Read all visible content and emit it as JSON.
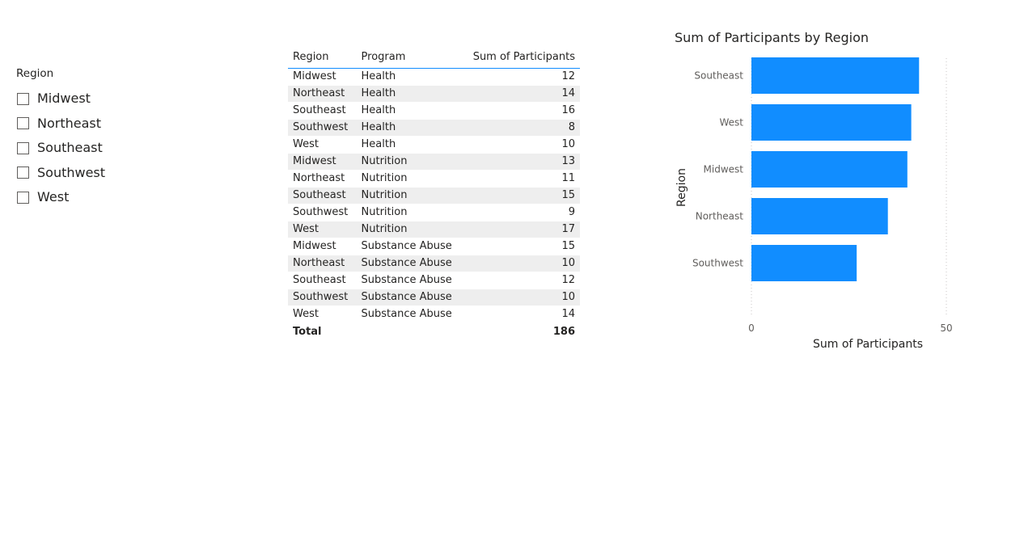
{
  "slicer": {
    "title": "Region",
    "items": [
      {
        "label": "Midwest",
        "checked": false
      },
      {
        "label": "Northeast",
        "checked": false
      },
      {
        "label": "Southeast",
        "checked": false
      },
      {
        "label": "Southwest",
        "checked": false
      },
      {
        "label": "West",
        "checked": false
      }
    ]
  },
  "table": {
    "columns": [
      "Region",
      "Program",
      "Sum of Participants"
    ],
    "rows": [
      [
        "Midwest",
        "Health",
        "12"
      ],
      [
        "Northeast",
        "Health",
        "14"
      ],
      [
        "Southeast",
        "Health",
        "16"
      ],
      [
        "Southwest",
        "Health",
        "8"
      ],
      [
        "West",
        "Health",
        "10"
      ],
      [
        "Midwest",
        "Nutrition",
        "13"
      ],
      [
        "Northeast",
        "Nutrition",
        "11"
      ],
      [
        "Southeast",
        "Nutrition",
        "15"
      ],
      [
        "Southwest",
        "Nutrition",
        "9"
      ],
      [
        "West",
        "Nutrition",
        "17"
      ],
      [
        "Midwest",
        "Substance Abuse",
        "15"
      ],
      [
        "Northeast",
        "Substance Abuse",
        "10"
      ],
      [
        "Southeast",
        "Substance Abuse",
        "12"
      ],
      [
        "Southwest",
        "Substance Abuse",
        "10"
      ],
      [
        "West",
        "Substance Abuse",
        "14"
      ]
    ],
    "total_label": "Total",
    "total_value": "186"
  },
  "chart_data": {
    "type": "bar",
    "orientation": "horizontal",
    "title": "Sum of Participants by Region",
    "xlabel": "Sum of Participants",
    "ylabel": "Region",
    "categories": [
      "Southeast",
      "West",
      "Midwest",
      "Northeast",
      "Southwest"
    ],
    "values": [
      43,
      41,
      40,
      35,
      27
    ],
    "xlim": [
      0,
      50
    ],
    "xticks": [
      0,
      50
    ],
    "bar_color": "#118dff",
    "grid": true
  }
}
